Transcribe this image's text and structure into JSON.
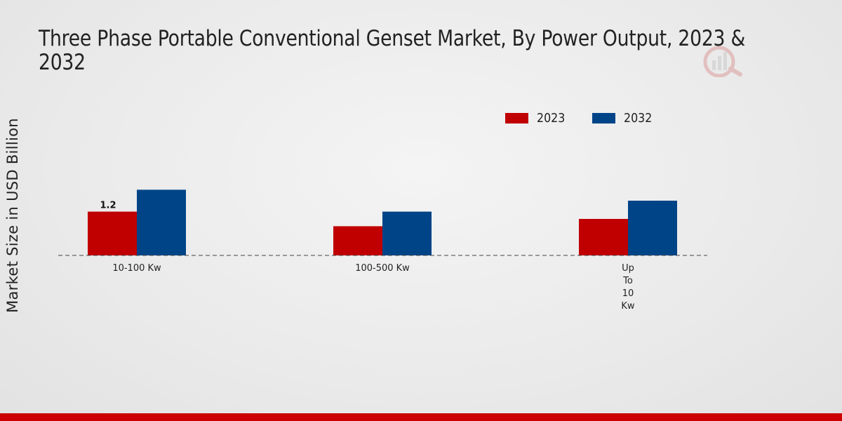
{
  "chart_data": {
    "type": "bar",
    "title": "Three Phase Portable Conventional Genset Market, By Power Output, 2023 & 2032",
    "title_lines": [
      "Three Phase Portable Conventional Genset Market, By Power Output, 2023 &",
      "2032"
    ],
    "xlabel": "",
    "ylabel": "Market Size in USD Billion",
    "categories": [
      "10-100 Kw",
      "100-500 Kw",
      "Up To 10 Kw"
    ],
    "category_lines": [
      [
        "10-100 Kw"
      ],
      [
        "100-500 Kw"
      ],
      [
        "Up",
        "To",
        "10",
        "Kw"
      ]
    ],
    "series": [
      {
        "name": "2023",
        "color": "#c00000",
        "values": [
          1.2,
          0.8,
          1.0
        ]
      },
      {
        "name": "2032",
        "color": "#004488",
        "values": [
          1.8,
          1.2,
          1.5
        ]
      }
    ],
    "data_labels": [
      {
        "series": 0,
        "index": 0,
        "text": "1.2"
      }
    ],
    "ylim": [
      0,
      5.8
    ],
    "grid": false,
    "legend_position": "top-right"
  },
  "colors": {
    "accent_bar": "#cc0000"
  }
}
